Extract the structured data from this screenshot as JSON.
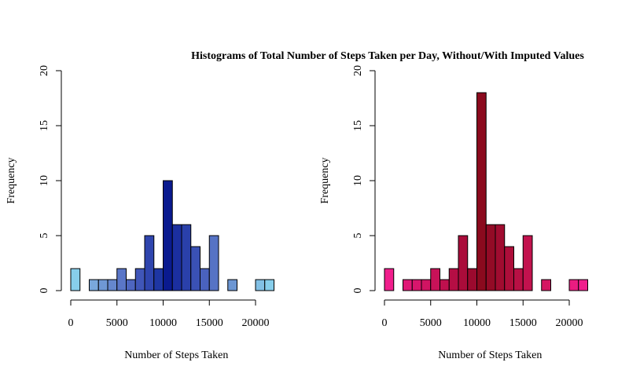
{
  "title": "Histograms of Total Number of Steps Taken per Day, Without/With Imputed Values",
  "chart_data": [
    {
      "type": "bar",
      "name": "without-imputed",
      "bin_width": 1000,
      "bins": [
        {
          "start": 0,
          "end": 1000,
          "count": 2,
          "color": "#87CEEB"
        },
        {
          "start": 1000,
          "end": 2000,
          "count": 0,
          "color": "#7FB8E3"
        },
        {
          "start": 2000,
          "end": 3000,
          "count": 1,
          "color": "#79A8DC"
        },
        {
          "start": 3000,
          "end": 4000,
          "count": 1,
          "color": "#6F98D5"
        },
        {
          "start": 4000,
          "end": 5000,
          "count": 1,
          "color": "#6587CE"
        },
        {
          "start": 5000,
          "end": 6000,
          "count": 2,
          "color": "#5A76C7"
        },
        {
          "start": 6000,
          "end": 7000,
          "count": 1,
          "color": "#4E66C0"
        },
        {
          "start": 7000,
          "end": 8000,
          "count": 2,
          "color": "#4056B8"
        },
        {
          "start": 8000,
          "end": 9000,
          "count": 5,
          "color": "#2F45AE"
        },
        {
          "start": 9000,
          "end": 10000,
          "count": 2,
          "color": "#1E36A3"
        },
        {
          "start": 10000,
          "end": 11000,
          "count": 10,
          "color": "#0A1A8F"
        },
        {
          "start": 11000,
          "end": 12000,
          "count": 6,
          "color": "#1B2FA0"
        },
        {
          "start": 12000,
          "end": 13000,
          "count": 6,
          "color": "#2A40AA"
        },
        {
          "start": 13000,
          "end": 14000,
          "count": 4,
          "color": "#3A51B5"
        },
        {
          "start": 14000,
          "end": 15000,
          "count": 2,
          "color": "#4A62BE"
        },
        {
          "start": 15000,
          "end": 16000,
          "count": 5,
          "color": "#5673C5"
        },
        {
          "start": 16000,
          "end": 17000,
          "count": 0,
          "color": "#6384CC"
        },
        {
          "start": 17000,
          "end": 18000,
          "count": 1,
          "color": "#6C96D3"
        },
        {
          "start": 18000,
          "end": 19000,
          "count": 0,
          "color": "#74A5D9"
        },
        {
          "start": 19000,
          "end": 20000,
          "count": 0,
          "color": "#7BB2DF"
        },
        {
          "start": 20000,
          "end": 21000,
          "count": 1,
          "color": "#82C0E5"
        },
        {
          "start": 21000,
          "end": 22000,
          "count": 1,
          "color": "#87CEEB"
        }
      ],
      "xlabel": "Number of Steps Taken",
      "ylabel": "Frequency",
      "xlim": [
        0,
        22000
      ],
      "ylim": [
        0,
        20
      ],
      "x_ticks": [
        "0",
        "5000",
        "10000",
        "15000",
        "20000"
      ],
      "x_tick_values": [
        0,
        5000,
        10000,
        15000,
        20000
      ],
      "y_ticks": [
        "0",
        "5",
        "10",
        "15",
        "20"
      ],
      "y_tick_values": [
        0,
        5,
        10,
        15,
        20
      ]
    },
    {
      "type": "bar",
      "name": "with-imputed",
      "bin_width": 1000,
      "bins": [
        {
          "start": 0,
          "end": 1000,
          "count": 2,
          "color": "#F01E8C"
        },
        {
          "start": 1000,
          "end": 2000,
          "count": 0,
          "color": "#E81A80"
        },
        {
          "start": 2000,
          "end": 3000,
          "count": 1,
          "color": "#E01876"
        },
        {
          "start": 3000,
          "end": 4000,
          "count": 1,
          "color": "#D8166C"
        },
        {
          "start": 4000,
          "end": 5000,
          "count": 1,
          "color": "#D01462"
        },
        {
          "start": 5000,
          "end": 6000,
          "count": 2,
          "color": "#C81258"
        },
        {
          "start": 6000,
          "end": 7000,
          "count": 1,
          "color": "#BF104E"
        },
        {
          "start": 7000,
          "end": 8000,
          "count": 2,
          "color": "#B50E44"
        },
        {
          "start": 8000,
          "end": 9000,
          "count": 5,
          "color": "#AA0C3A"
        },
        {
          "start": 9000,
          "end": 10000,
          "count": 2,
          "color": "#9C0A2E"
        },
        {
          "start": 10000,
          "end": 11000,
          "count": 18,
          "color": "#8B0A1E"
        },
        {
          "start": 11000,
          "end": 12000,
          "count": 6,
          "color": "#930B26"
        },
        {
          "start": 12000,
          "end": 13000,
          "count": 6,
          "color": "#A00C30"
        },
        {
          "start": 13000,
          "end": 14000,
          "count": 4,
          "color": "#AD0E3A"
        },
        {
          "start": 14000,
          "end": 15000,
          "count": 2,
          "color": "#B81044"
        },
        {
          "start": 15000,
          "end": 16000,
          "count": 5,
          "color": "#C2124E"
        },
        {
          "start": 16000,
          "end": 17000,
          "count": 0,
          "color": "#CB1458"
        },
        {
          "start": 17000,
          "end": 18000,
          "count": 1,
          "color": "#D41662"
        },
        {
          "start": 18000,
          "end": 19000,
          "count": 0,
          "color": "#DC186C"
        },
        {
          "start": 19000,
          "end": 20000,
          "count": 0,
          "color": "#E41A76"
        },
        {
          "start": 20000,
          "end": 21000,
          "count": 1,
          "color": "#EA1C80"
        },
        {
          "start": 21000,
          "end": 22000,
          "count": 1,
          "color": "#F01E8C"
        }
      ],
      "xlabel": "Number of Steps Taken",
      "ylabel": "Frequency",
      "xlim": [
        0,
        22000
      ],
      "ylim": [
        0,
        20
      ],
      "x_ticks": [
        "0",
        "5000",
        "10000",
        "15000",
        "20000"
      ],
      "x_tick_values": [
        0,
        5000,
        10000,
        15000,
        20000
      ],
      "y_ticks": [
        "0",
        "5",
        "10",
        "15",
        "20"
      ],
      "y_tick_values": [
        0,
        5,
        10,
        15,
        20
      ]
    }
  ]
}
